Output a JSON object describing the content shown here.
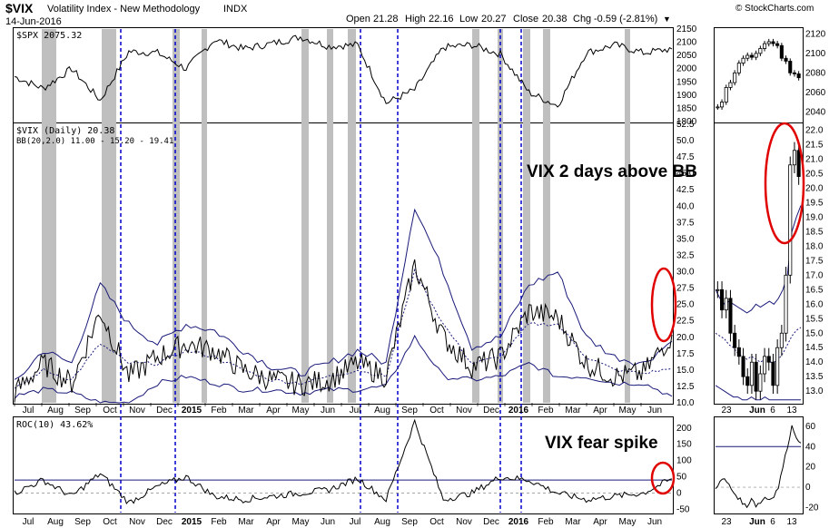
{
  "header": {
    "symbol": "$VIX",
    "name": "Volatility Index - New Methodology",
    "exchange": "INDX",
    "date": "14-Jun-2016",
    "watermark": "© StockCharts.com",
    "quote": [
      {
        "label": "Open",
        "value": "21.28"
      },
      {
        "label": "High",
        "value": "22.16"
      },
      {
        "label": "Low",
        "value": "20.27"
      },
      {
        "label": "Close",
        "value": "20.38"
      },
      {
        "label": "Chg",
        "value": "-0.59 (-2.81%)"
      }
    ],
    "down_marker": "▼"
  },
  "colors": {
    "price": "#000000",
    "bollinger": "#1a1a7a",
    "dashed_lines": "#0000cc",
    "shading": "#bfbfbf",
    "annotations": "#e00000"
  },
  "annotations": {
    "bb_text": "VIX 2 days above BB",
    "spike_text": "VIX fear spike"
  },
  "chart_data": [
    {
      "id": "spx",
      "type": "line",
      "legend": "$SPX 2075.32",
      "y_ticks": [
        "2150",
        "2100",
        "2050",
        "2000",
        "1950",
        "1900",
        "1850",
        "1800"
      ],
      "ylim": [
        1800,
        2150
      ],
      "x": [
        "Jul 2014",
        "Aug",
        "Sep",
        "Oct",
        "Nov",
        "Dec",
        "Jan 2015",
        "Feb",
        "Mar",
        "Apr",
        "May",
        "Jun",
        "Jul",
        "Aug",
        "Sep",
        "Oct",
        "Nov",
        "Dec",
        "Jan 2016",
        "Feb",
        "Mar",
        "Apr",
        "May",
        "Jun 2016"
      ],
      "values": [
        1970,
        1925,
        2000,
        1880,
        2065,
        2060,
        2000,
        2110,
        2075,
        2095,
        2120,
        2085,
        2090,
        1870,
        1920,
        2080,
        2090,
        2055,
        1910,
        1860,
        2060,
        2090,
        2060,
        2075
      ]
    },
    {
      "id": "vix",
      "type": "line",
      "legend": "$VIX (Daily) 20.38",
      "bb_legend": "BB(20,2.0) 11.00 - 15.20 - 19.41",
      "y_ticks": [
        "52.5",
        "50.0",
        "47.5",
        "45.0",
        "42.5",
        "40.0",
        "37.5",
        "35.0",
        "32.5",
        "30.0",
        "27.5",
        "25.0",
        "22.5",
        "20.0",
        "17.5",
        "15.0",
        "12.5",
        "10.0"
      ],
      "ylim": [
        10,
        52.5
      ],
      "x": [
        "Jul 2014",
        "Aug",
        "Sep",
        "Oct",
        "Nov",
        "Dec",
        "Jan 2015",
        "Feb",
        "Mar",
        "Apr",
        "May",
        "Jun",
        "Jul",
        "Aug",
        "Sep",
        "Oct",
        "Nov",
        "Dec",
        "Jan 2016",
        "Feb",
        "Mar",
        "Apr",
        "May",
        "Jun 2016"
      ],
      "values": [
        11.5,
        16,
        13,
        24,
        14,
        17,
        19,
        18,
        15,
        13.5,
        12.8,
        13.5,
        16,
        14,
        31,
        20,
        15.5,
        17,
        24,
        23,
        16,
        14,
        14.5,
        20.4
      ],
      "bb_upper": [
        13,
        18,
        16,
        28,
        22,
        19,
        22,
        21,
        18,
        15.5,
        14.5,
        16,
        18,
        16,
        40,
        30,
        18.5,
        20,
        28,
        30,
        20,
        17,
        16,
        19.4
      ],
      "bb_middle": [
        12,
        15,
        13.5,
        19,
        16,
        16,
        18,
        17,
        15,
        13.5,
        13,
        14,
        15,
        14,
        30,
        22,
        16,
        17,
        22,
        22,
        17,
        15,
        14.5,
        15.2
      ],
      "bb_lower": [
        11,
        12,
        11.5,
        10,
        10,
        13,
        14,
        13,
        12,
        12,
        11.5,
        12,
        12,
        12.5,
        20,
        14,
        13.5,
        14,
        16,
        14,
        14,
        13,
        13,
        11
      ]
    },
    {
      "id": "roc",
      "type": "line",
      "legend": "ROC(10) 43.62%",
      "y_ticks": [
        "200",
        "150",
        "100",
        "50",
        "0",
        "-50"
      ],
      "ylim": [
        -60,
        230
      ],
      "threshold": 40,
      "x": [
        "Jul 2014",
        "Aug",
        "Sep",
        "Oct",
        "Nov",
        "Dec",
        "Jan 2015",
        "Feb",
        "Mar",
        "Apr",
        "May",
        "Jun",
        "Jul",
        "Aug",
        "Sep",
        "Oct",
        "Nov",
        "Dec",
        "Jan 2016",
        "Feb",
        "Mar",
        "Apr",
        "May",
        "Jun 2016"
      ],
      "values": [
        0,
        40,
        -10,
        60,
        -30,
        20,
        50,
        -10,
        -20,
        -10,
        0,
        10,
        45,
        -20,
        220,
        -20,
        0,
        50,
        40,
        0,
        -20,
        -10,
        0,
        43.6
      ]
    },
    {
      "id": "spx_zoom",
      "type": "candlestick",
      "y_ticks": [
        "2120",
        "2100",
        "2080",
        "2060",
        "2040"
      ],
      "ylim": [
        2030,
        2125
      ],
      "x_ticks": [
        "23",
        "Jun",
        "6",
        "13"
      ],
      "closes": [
        2045,
        2050,
        2065,
        2070,
        2080,
        2090,
        2095,
        2098,
        2096,
        2100,
        2105,
        2110,
        2112,
        2110,
        2108,
        2095,
        2092,
        2080,
        2079,
        2075
      ]
    },
    {
      "id": "vix_zoom",
      "type": "candlestick",
      "y_ticks": [
        "22.0",
        "21.5",
        "21.0",
        "20.5",
        "20.0",
        "19.5",
        "19.0",
        "18.5",
        "18.0",
        "17.5",
        "17.0",
        "16.5",
        "16.0",
        "15.5",
        "15.0",
        "14.5",
        "14.0",
        "13.5",
        "13.0"
      ],
      "ylim": [
        12.6,
        22.2
      ],
      "x_ticks": [
        "23",
        "Jun",
        "6",
        "13"
      ],
      "closes": [
        16.5,
        15.8,
        16.2,
        15.0,
        14.5,
        14.2,
        13.5,
        13.2,
        14.0,
        13.0,
        13.6,
        14.2,
        14.0,
        13.2,
        14.5,
        15.0,
        17.0,
        20.8,
        21.3,
        20.4
      ]
    },
    {
      "id": "roc_zoom",
      "type": "line",
      "y_ticks": [
        "60",
        "40",
        "20",
        "0",
        "-20"
      ],
      "ylim": [
        -25,
        68
      ],
      "threshold": 40,
      "x_ticks": [
        "23",
        "Jun",
        "6",
        "13"
      ],
      "values": [
        0,
        5,
        8,
        2,
        -5,
        -10,
        -15,
        -20,
        -10,
        -18,
        -15,
        -10,
        -12,
        -8,
        0,
        20,
        40,
        60,
        50,
        43.6
      ]
    }
  ],
  "x_axis": {
    "main_labels": [
      "Jul",
      "Aug",
      "Sep",
      "Oct",
      "Nov",
      "Dec",
      "2015",
      "Feb",
      "Mar",
      "Apr",
      "May",
      "Jun",
      "Jul",
      "Aug",
      "Sep",
      "Oct",
      "Nov",
      "Dec",
      "2016",
      "Feb",
      "Mar",
      "Apr",
      "May",
      "Jun"
    ],
    "zoom_labels": [
      "23",
      "Jun",
      "6",
      "13"
    ]
  }
}
